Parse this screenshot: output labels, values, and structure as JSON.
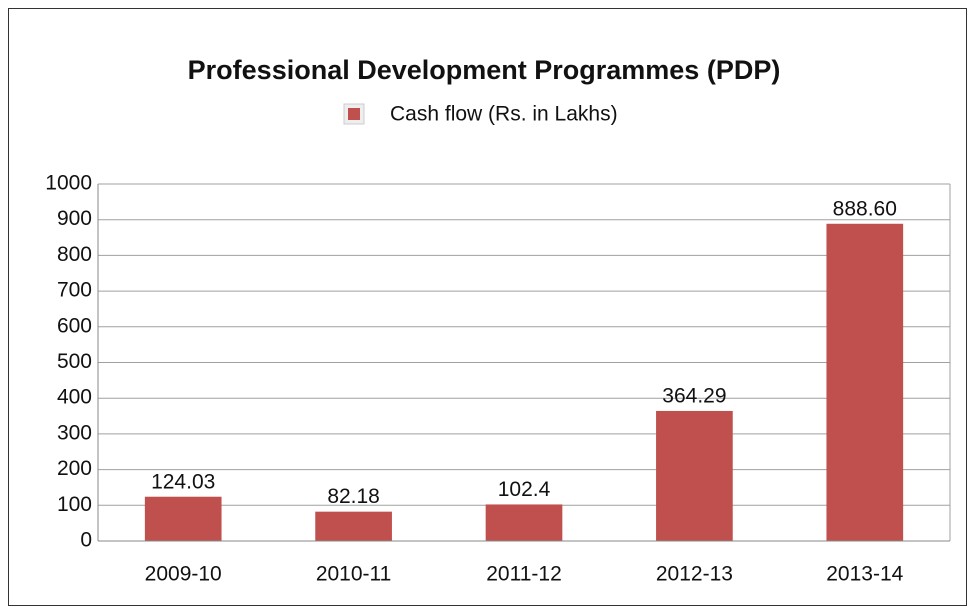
{
  "chart_data": {
    "type": "bar",
    "title": "Professional Development Programmes (PDP)",
    "categories": [
      "2009-10",
      "2010-11",
      "2011-12",
      "2012-13",
      "2013-14"
    ],
    "series": [
      {
        "name": "Cash flow (Rs. in Lakhs)",
        "color": "#c0504d",
        "values": [
          124.03,
          82.18,
          102.4,
          364.29,
          888.6
        ],
        "value_labels": [
          "124.03",
          "82.18",
          "102.4",
          "364.29",
          "888.60"
        ]
      }
    ],
    "ylim": [
      0,
      1000
    ],
    "yticks": [
      0,
      100,
      200,
      300,
      400,
      500,
      600,
      700,
      800,
      900,
      1000
    ],
    "grid": true,
    "legend": "top"
  }
}
